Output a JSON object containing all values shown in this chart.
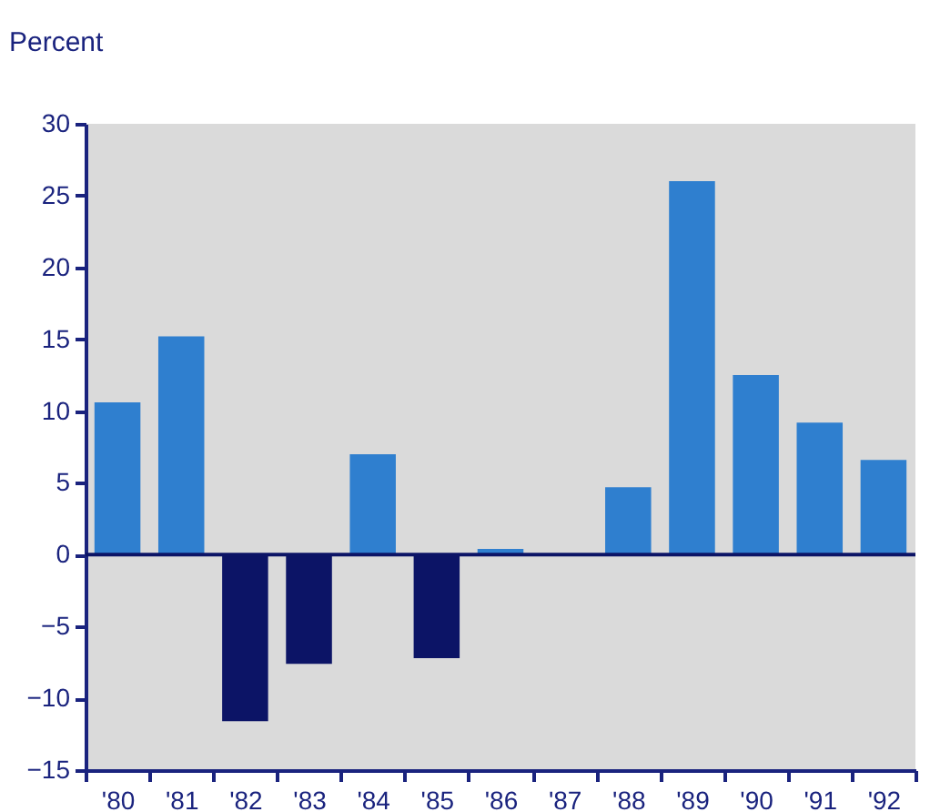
{
  "chart_data": {
    "type": "bar",
    "ylabel": "Percent",
    "categories": [
      "'80",
      "'81",
      "'82",
      "'83",
      "'84",
      "'85",
      "'86",
      "'87",
      "'88",
      "'89",
      "'90",
      "'91",
      "'92"
    ],
    "values": [
      10.6,
      15.2,
      -11.6,
      -7.6,
      7.0,
      -7.2,
      0.4,
      0,
      4.7,
      26.0,
      12.5,
      9.2,
      6.6
    ],
    "colors": [
      "#2f7fcf",
      "#2f7fcf",
      "#0c1466",
      "#0c1466",
      "#2f7fcf",
      "#0c1466",
      "#2f7fcf",
      "#2f7fcf",
      "#2f7fcf",
      "#2f7fcf",
      "#2f7fcf",
      "#2f7fcf",
      "#2f7fcf"
    ],
    "ylim": [
      -15,
      30
    ],
    "yticks": [
      -15,
      -10,
      -5,
      0,
      5,
      10,
      15,
      20,
      25,
      30
    ],
    "ref_lines": [
      {
        "axis": "y",
        "value": 0,
        "color": "#0c1466"
      }
    ],
    "grid": false
  }
}
